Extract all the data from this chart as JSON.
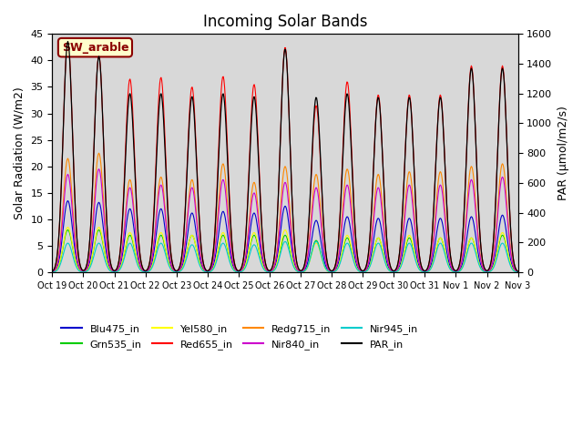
{
  "title": "Incoming Solar Bands",
  "ylabel_left": "Solar Radiation (W/m2)",
  "ylabel_right": "PAR (μmol/m2/s)",
  "ylim_left": [
    0,
    45
  ],
  "ylim_right": [
    0,
    1600
  ],
  "background_color": "#d8d8d8",
  "annotation_text": "SW_arable",
  "annotation_color": "#8B0000",
  "annotation_bg": "#ffffcc",
  "annotation_border": "#8B0000",
  "series_colors": {
    "Blu475_in": "#0000cc",
    "Grn535_in": "#00cc00",
    "Yel580_in": "#ffff00",
    "Red655_in": "#ff0000",
    "Redg715_in": "#ff8800",
    "Nir840_in": "#cc00cc",
    "Nir945_in": "#00cccc",
    "PAR_in": "#000000"
  },
  "x_tick_labels": [
    "Oct 19",
    "Oct 20",
    "Oct 21",
    "Oct 22",
    "Oct 23",
    "Oct 24",
    "Oct 25",
    "Oct 26",
    "Oct 27",
    "Oct 28",
    "Oct 29",
    "Oct 30",
    "Oct 31",
    "Nov 1",
    "Nov 2",
    "Nov 3"
  ],
  "n_days": 15,
  "day_peaks": {
    "Blu475_in": [
      13.5,
      13.2,
      12.0,
      12.0,
      11.2,
      11.5,
      11.2,
      12.5,
      9.8,
      10.5,
      10.2,
      10.2,
      10.2,
      10.5,
      10.8
    ],
    "Grn535_in": [
      8.0,
      8.0,
      7.0,
      7.0,
      7.0,
      7.0,
      7.0,
      7.0,
      6.0,
      6.5,
      6.5,
      6.5,
      6.5,
      6.5,
      7.0
    ],
    "Yel580_in": [
      8.5,
      8.5,
      7.5,
      7.5,
      7.0,
      7.5,
      7.5,
      8.0,
      5.5,
      7.0,
      6.5,
      7.0,
      6.5,
      6.5,
      7.5
    ],
    "Red655_in": [
      44.0,
      41.0,
      36.5,
      36.8,
      35.0,
      37.0,
      35.5,
      42.5,
      31.5,
      36.0,
      33.5,
      33.5,
      33.5,
      39.0,
      39.0
    ],
    "Redg715_in": [
      21.5,
      22.5,
      17.5,
      18.0,
      17.5,
      20.5,
      17.0,
      20.0,
      18.5,
      19.5,
      18.5,
      19.0,
      19.0,
      20.0,
      20.5
    ],
    "Nir840_in": [
      18.5,
      19.5,
      16.0,
      16.5,
      16.0,
      17.5,
      15.0,
      17.0,
      16.0,
      16.5,
      16.0,
      16.5,
      16.5,
      17.5,
      18.0
    ],
    "Nir945_in": [
      5.5,
      5.5,
      5.5,
      5.5,
      5.2,
      5.5,
      5.2,
      5.8,
      5.8,
      5.5,
      5.5,
      5.5,
      5.5,
      5.5,
      5.5
    ],
    "PAR_in": [
      1550,
      1450,
      1200,
      1200,
      1180,
      1200,
      1180,
      1500,
      1175,
      1200,
      1175,
      1175,
      1175,
      1370,
      1370
    ]
  }
}
